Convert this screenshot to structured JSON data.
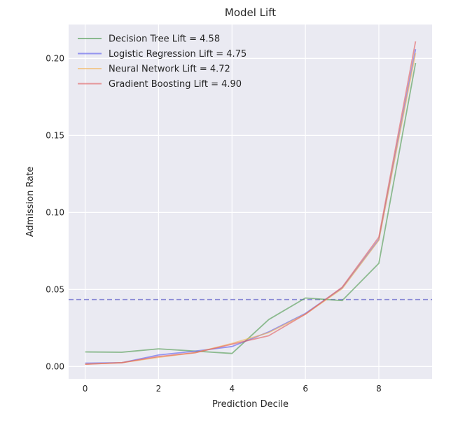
{
  "chart_data": {
    "type": "line",
    "title": "Model Lift",
    "xlabel": "Prediction Decile",
    "ylabel": "Admission Rate",
    "xlim": [
      -0.45,
      9.45
    ],
    "ylim": [
      -0.008,
      0.222
    ],
    "x_ticks": [
      0,
      2,
      4,
      6,
      8
    ],
    "x_tick_labels": [
      "0",
      "2",
      "4",
      "6",
      "8"
    ],
    "y_ticks": [
      0.0,
      0.05,
      0.1,
      0.15,
      0.2
    ],
    "y_tick_labels": [
      "0.00",
      "0.05",
      "0.10",
      "0.15",
      "0.20"
    ],
    "grid": true,
    "background": "#eaeaf2",
    "legend_location": "upper-left",
    "x": [
      0,
      1,
      2,
      3,
      4,
      5,
      6,
      7,
      8,
      9
    ],
    "series": [
      {
        "name": "Decision Tree Lift = 4.58",
        "color": "#4c9a4c",
        "values": [
          0.0095,
          0.0093,
          0.0115,
          0.01,
          0.0085,
          0.0305,
          0.0445,
          0.0428,
          0.067,
          0.197
        ]
      },
      {
        "name": "Logistic Regression Lift = 4.75",
        "color": "#5a5aee",
        "values": [
          0.0022,
          0.0025,
          0.0075,
          0.01,
          0.013,
          0.0225,
          0.0345,
          0.051,
          0.0825,
          0.206
        ]
      },
      {
        "name": "Neural Network Lift = 4.72",
        "color": "#f5b455",
        "values": [
          0.0015,
          0.0025,
          0.006,
          0.009,
          0.015,
          0.022,
          0.034,
          0.0505,
          0.082,
          0.2035
        ]
      },
      {
        "name": "Gradient Boosting Lift = 4.90",
        "color": "#e35d5d",
        "values": [
          0.0015,
          0.0025,
          0.0065,
          0.009,
          0.0145,
          0.02,
          0.034,
          0.0515,
          0.084,
          0.211
        ]
      }
    ],
    "reference_line": {
      "y": 0.0435,
      "color": "#6666cc",
      "style": "dashed"
    }
  }
}
